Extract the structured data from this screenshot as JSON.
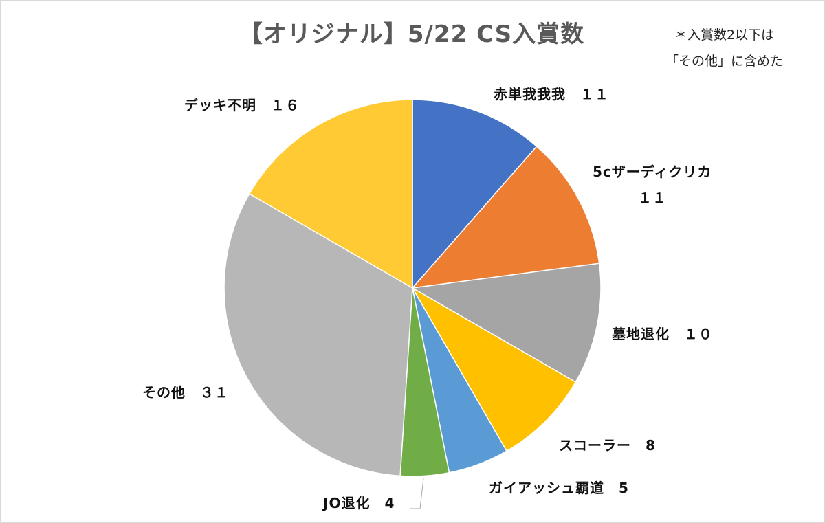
{
  "chart_data": {
    "type": "pie",
    "title": "【オリジナル】5/22 CS入賞数",
    "note_lines": [
      "＊入賞数2以下は",
      "「その他」に含めた"
    ],
    "slices": [
      {
        "name": "赤単我我我",
        "value": 11,
        "value_label": "１１",
        "color": "#4472C4"
      },
      {
        "name": "5cザーディクリカ",
        "value": 11,
        "value_label": "１１",
        "color": "#ED7D31"
      },
      {
        "name": "墓地退化",
        "value": 10,
        "value_label": "１０",
        "color": "#A5A5A5"
      },
      {
        "name": "スコーラー",
        "value": 8,
        "value_label": "8",
        "color": "#FFC000"
      },
      {
        "name": "ガイアッシュ覇道",
        "value": 5,
        "value_label": "5",
        "color": "#5B9BD5"
      },
      {
        "name": "JO退化",
        "value": 4,
        "value_label": "4",
        "color": "#70AD47"
      },
      {
        "name": "その他",
        "value": 31,
        "value_label": "３１",
        "color": "#B7B7B7"
      },
      {
        "name": "デッキ不明",
        "value": 16,
        "value_label": "１６",
        "color": "#FFCA33"
      }
    ],
    "start_angle_deg": 0,
    "direction": "clockwise",
    "legend": "none"
  }
}
